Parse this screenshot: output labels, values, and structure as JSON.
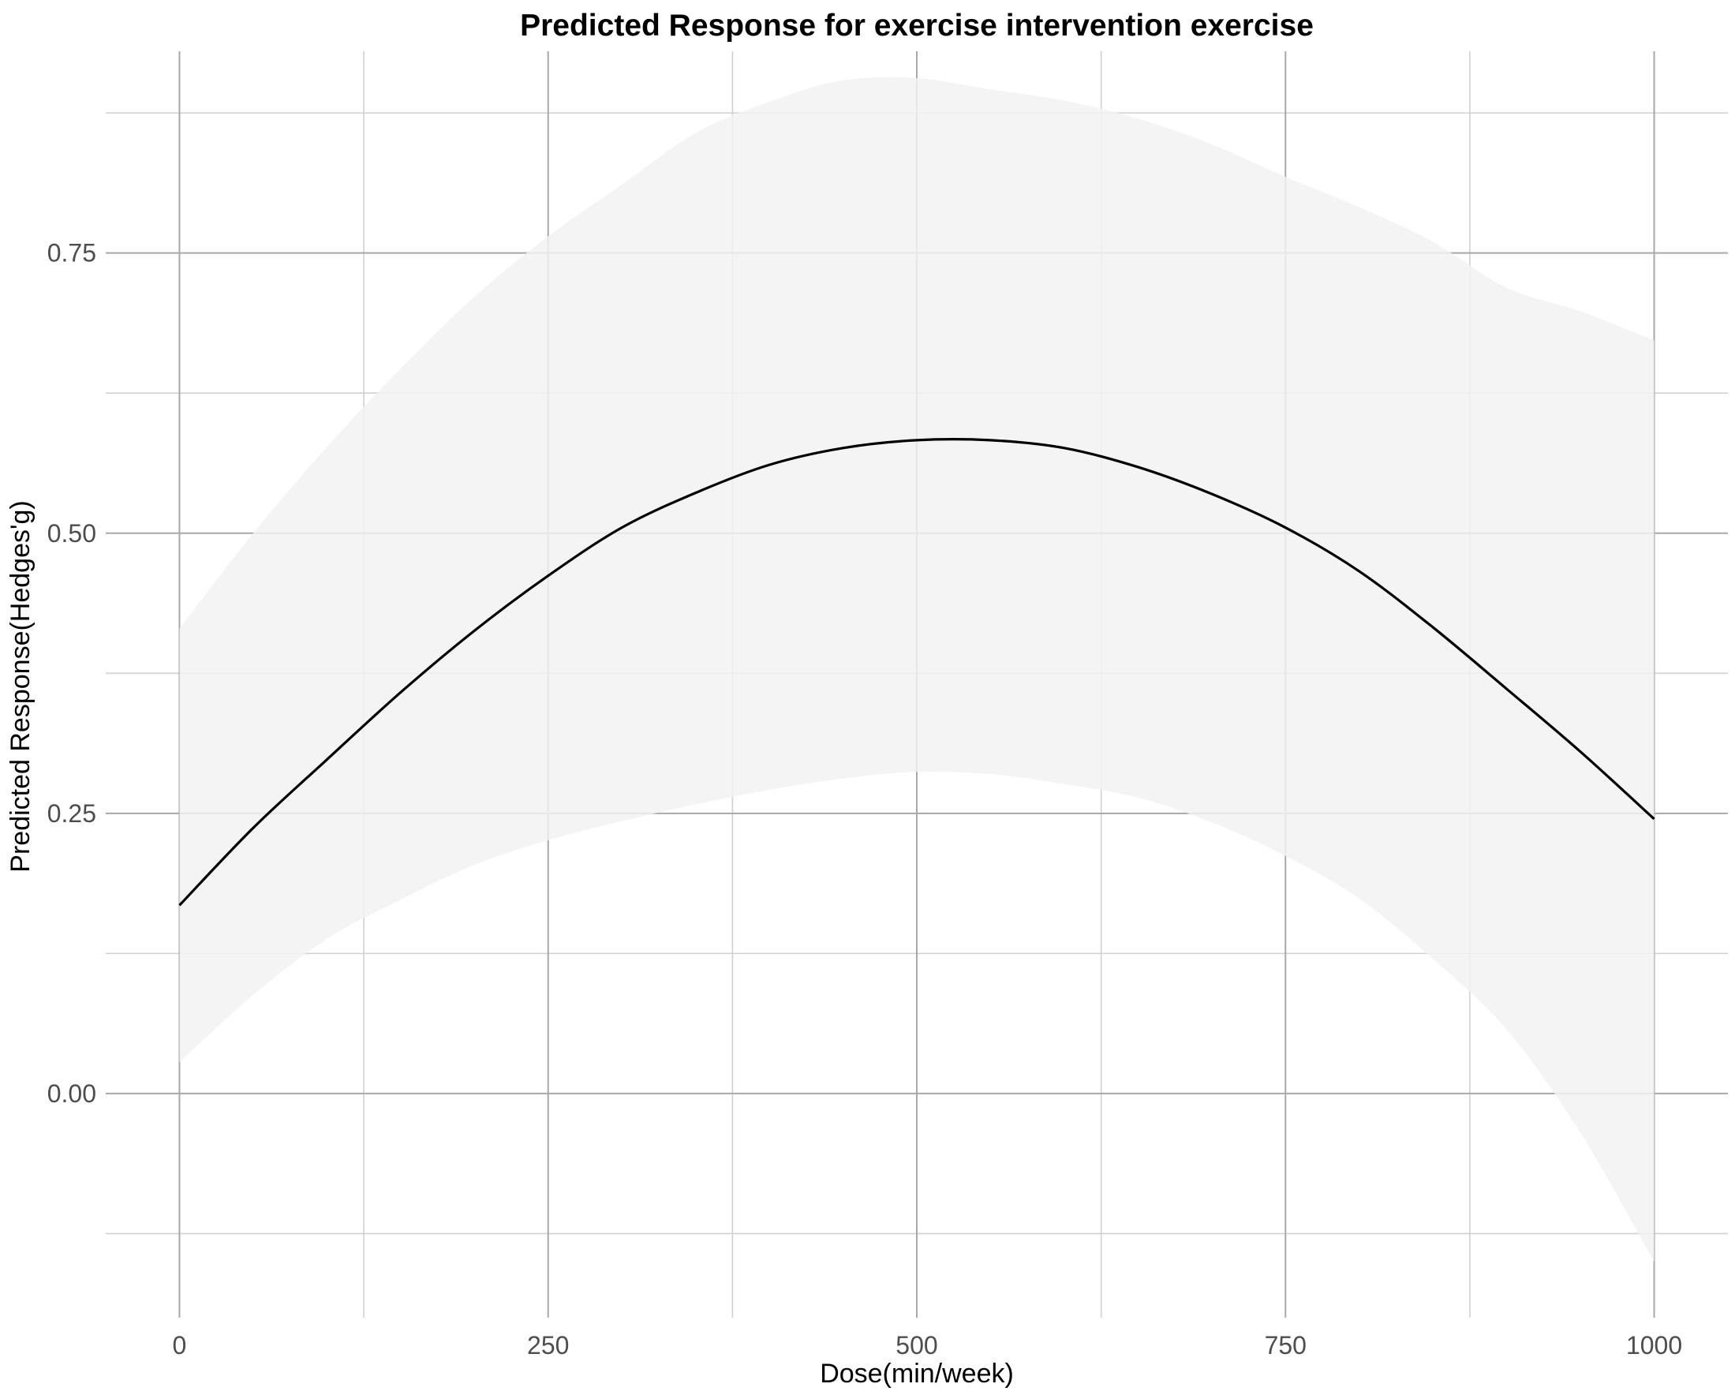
{
  "chart_data": {
    "type": "line",
    "title": "Predicted Response for exercise intervention exercise",
    "xlabel": "Dose(min/week)",
    "ylabel": "Predicted Response(Hedges'g)",
    "xlim": [
      -50,
      1050
    ],
    "ylim": [
      -0.2,
      0.93
    ],
    "x_ticks": [
      0,
      250,
      500,
      750,
      1000
    ],
    "x_tick_labels": [
      "0",
      "250",
      "500",
      "750",
      "1000"
    ],
    "x_minor_ticks": [
      125,
      375,
      625,
      875
    ],
    "y_ticks": [
      0.0,
      0.25,
      0.5,
      0.75
    ],
    "y_tick_labels": [
      "0.00",
      "0.25",
      "0.50",
      "0.75"
    ],
    "y_minor_ticks": [
      -0.125,
      0.125,
      0.375,
      0.625,
      0.875
    ],
    "grid": true,
    "legend": "none",
    "colors": {
      "line": "#000000",
      "ribbon": "#f2f2f2",
      "background": "#ffffff"
    },
    "series": [
      {
        "x": [
          0,
          50,
          100,
          150,
          200,
          250,
          300,
          350,
          400,
          450,
          500,
          550,
          600,
          650,
          700,
          750,
          800,
          850,
          900,
          950,
          1000
        ],
        "y": [
          0.168,
          0.237,
          0.298,
          0.358,
          0.413,
          0.462,
          0.505,
          0.536,
          0.561,
          0.576,
          0.583,
          0.583,
          0.576,
          0.559,
          0.535,
          0.505,
          0.466,
          0.416,
          0.361,
          0.305,
          0.245
        ],
        "lower": [
          0.028,
          0.088,
          0.138,
          0.173,
          0.204,
          0.226,
          0.243,
          0.258,
          0.271,
          0.281,
          0.287,
          0.285,
          0.276,
          0.264,
          0.242,
          0.212,
          0.174,
          0.12,
          0.057,
          -0.035,
          -0.15
        ],
        "upper": [
          0.415,
          0.5,
          0.577,
          0.647,
          0.711,
          0.765,
          0.811,
          0.857,
          0.885,
          0.904,
          0.906,
          0.896,
          0.886,
          0.87,
          0.847,
          0.818,
          0.791,
          0.76,
          0.719,
          0.698,
          0.672
        ]
      }
    ]
  }
}
